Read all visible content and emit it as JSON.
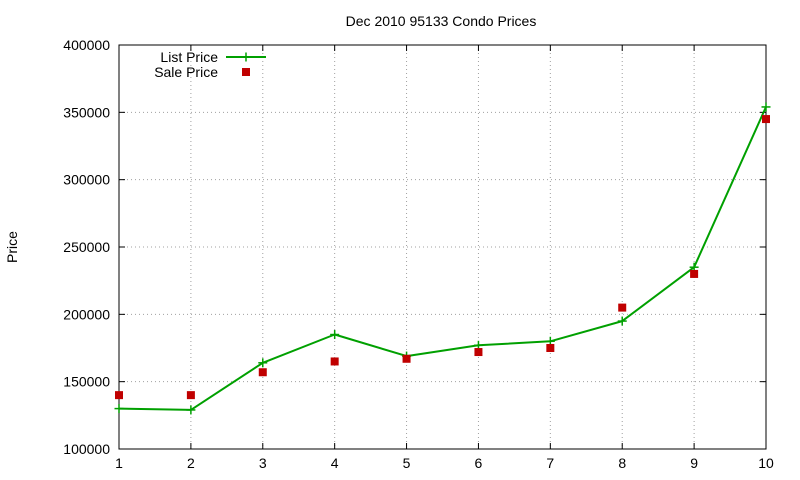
{
  "chart_data": {
    "type": "line",
    "title": "Dec 2010 95133 Condo Prices",
    "xlabel": "",
    "ylabel": "Price",
    "x": [
      1,
      2,
      3,
      4,
      5,
      6,
      7,
      8,
      9,
      10
    ],
    "xlim": [
      1,
      10
    ],
    "ylim": [
      100000,
      400000
    ],
    "x_ticks": [
      1,
      2,
      3,
      4,
      5,
      6,
      7,
      8,
      9,
      10
    ],
    "y_ticks": [
      100000,
      150000,
      200000,
      250000,
      300000,
      350000,
      400000
    ],
    "grid": true,
    "legend_position": "top-left",
    "series": [
      {
        "name": "List Price",
        "style": "line-with-plus-markers",
        "color": "#00a000",
        "values": [
          130000,
          129000,
          164000,
          185000,
          169000,
          177000,
          180000,
          195000,
          235000,
          354000
        ]
      },
      {
        "name": "Sale Price",
        "style": "square-markers",
        "color": "#c00000",
        "values": [
          140000,
          140000,
          157000,
          165000,
          167000,
          172000,
          175000,
          205000,
          230000,
          345000
        ]
      }
    ]
  }
}
